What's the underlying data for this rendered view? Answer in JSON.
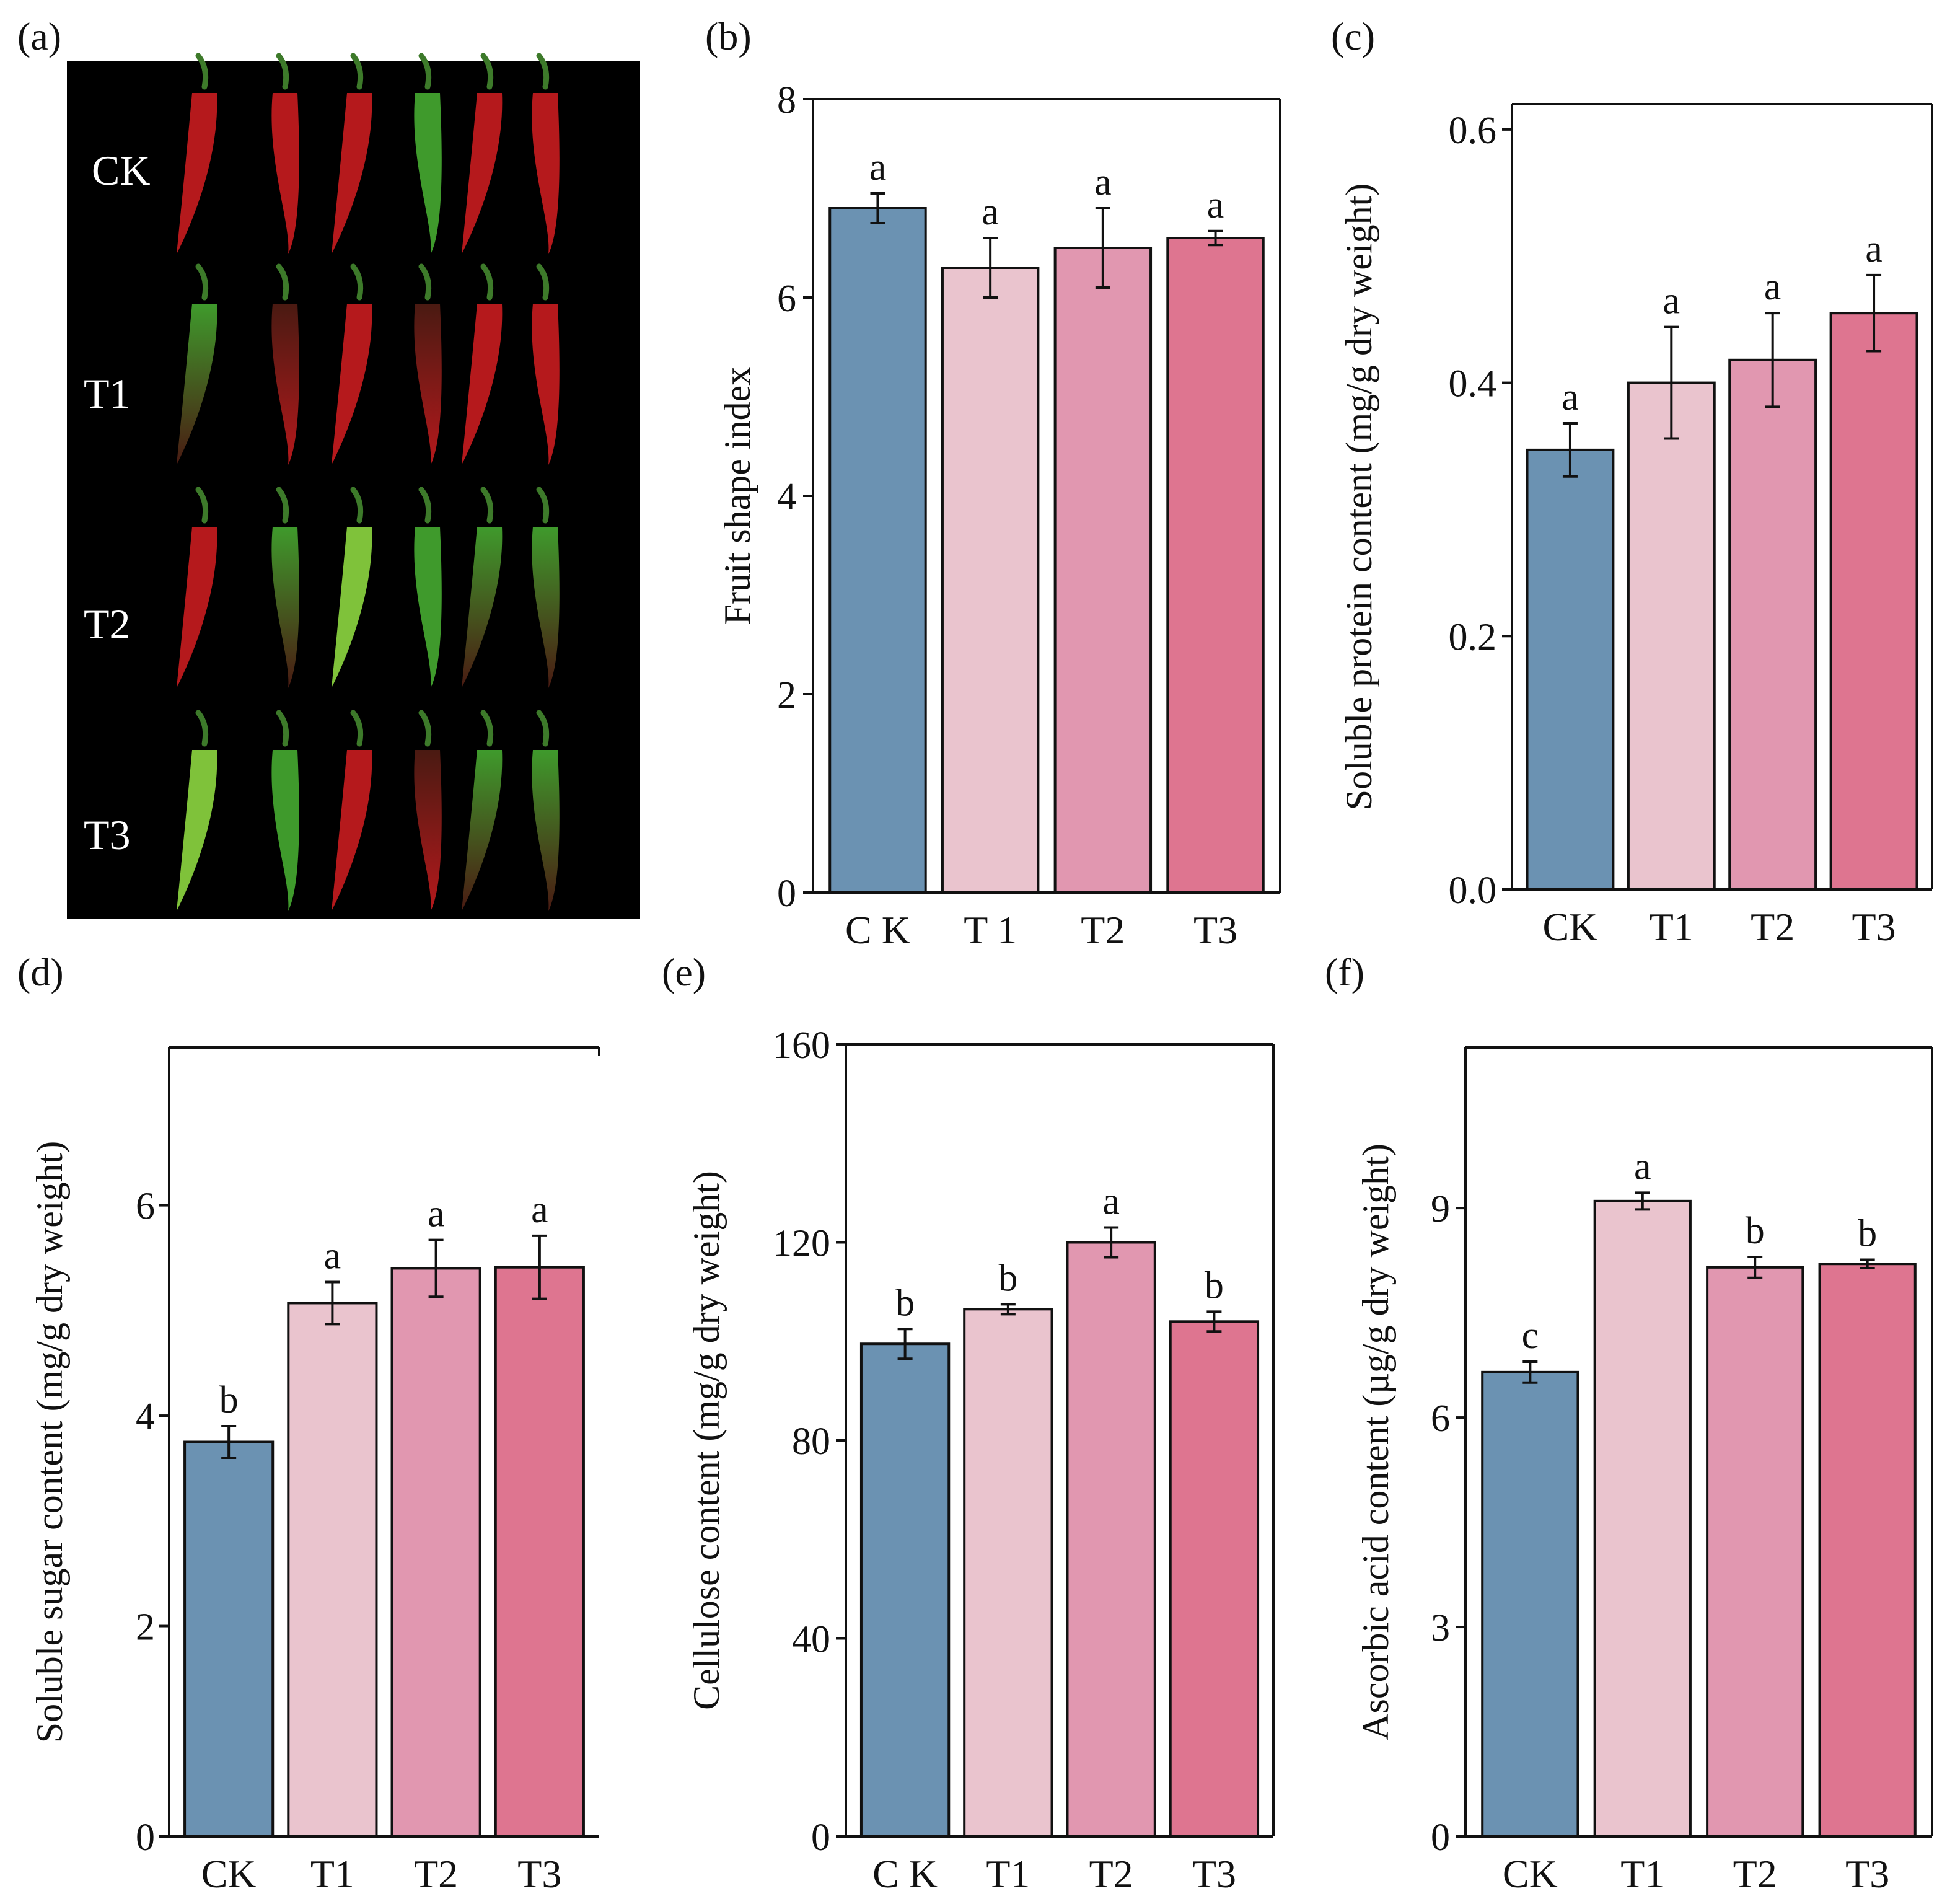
{
  "colors": {
    "CK": "#6b92b2",
    "T1": "#eac4ce",
    "T2": "#e197b0",
    "T3": "#de7590",
    "photo_bg": "#000000",
    "pepper_red": "#b5191c",
    "pepper_dark": "#4a1a12",
    "pepper_green": "#3f9a2c",
    "pepper_light_green": "#7fc23a",
    "stem": "#3d7a2a"
  },
  "panel_a": {
    "label": "(a)",
    "row_labels": [
      "CK",
      "T1",
      "T2",
      "T3"
    ],
    "peppers": [
      [
        "red",
        "red",
        "red",
        "green-red",
        "red",
        "red"
      ],
      [
        "dark-green",
        "dark-red",
        "red",
        "dark-red",
        "red",
        "red"
      ],
      [
        "red",
        "dark-green",
        "light-green",
        "green",
        "green-dark",
        "green-dark"
      ],
      [
        "light-green",
        "green",
        "red",
        "dark-red",
        "dark-green",
        "dark-green"
      ]
    ]
  },
  "chart_data": [
    {
      "id": "b",
      "label": "(b)",
      "type": "bar",
      "categories": [
        "C K",
        "T 1",
        "T2",
        "T3"
      ],
      "values": [
        6.9,
        6.3,
        6.5,
        6.6
      ],
      "errors": [
        0.15,
        0.3,
        0.4,
        0.07
      ],
      "letters": [
        "a",
        "a",
        "a",
        "a"
      ],
      "ylabel": "Fruit shape index",
      "ylim": [
        0,
        8
      ],
      "yticks": [
        "0",
        "2",
        "4",
        "6",
        "8"
      ],
      "ytick_values": [
        0,
        2,
        4,
        6,
        8
      ]
    },
    {
      "id": "c",
      "label": "(c)",
      "type": "bar",
      "categories": [
        "CK",
        "T1",
        "T2",
        "T3"
      ],
      "values": [
        0.347,
        0.4,
        0.418,
        0.455
      ],
      "errors": [
        0.021,
        0.044,
        0.037,
        0.03
      ],
      "letters": [
        "a",
        "a",
        "a",
        "a"
      ],
      "ylabel": "Soluble protein content (mg/g dry weight)",
      "ylim": [
        0,
        0.62
      ],
      "yticks": [
        "0.0",
        "0.2",
        "0.4",
        "0.6"
      ],
      "ytick_values": [
        0,
        0.2,
        0.4,
        0.6
      ]
    },
    {
      "id": "d",
      "label": "(d)",
      "type": "bar",
      "categories": [
        "CK",
        "T1",
        "T2",
        "T3"
      ],
      "values": [
        3.75,
        5.07,
        5.4,
        5.41
      ],
      "errors": [
        0.15,
        0.2,
        0.27,
        0.3
      ],
      "letters": [
        "b",
        "a",
        "a",
        "a"
      ],
      "ylabel": "Soluble sugar content  (mg/g dry weight)",
      "ylim": [
        0,
        7.5
      ],
      "yticks": [
        "0",
        "2",
        "4",
        "6"
      ],
      "ytick_values": [
        0,
        2,
        4,
        6
      ]
    },
    {
      "id": "e",
      "label": "(e)",
      "type": "bar",
      "categories": [
        "C K",
        "T1",
        "T2",
        "T3"
      ],
      "values": [
        99.5,
        106.5,
        120,
        104
      ],
      "errors": [
        3,
        1,
        3,
        2
      ],
      "letters": [
        "b",
        "b",
        "a",
        "b"
      ],
      "ylabel": "Cellulose content  (mg/g dry weight)",
      "ylim": [
        0,
        160
      ],
      "yticks": [
        "0",
        "40",
        "80",
        "120",
        "160"
      ],
      "ytick_values": [
        0,
        40,
        80,
        120,
        160
      ]
    },
    {
      "id": "f",
      "label": "(f)",
      "type": "bar",
      "categories": [
        "CK",
        "T1",
        "T2",
        "T3"
      ],
      "values": [
        6.65,
        9.1,
        8.15,
        8.2
      ],
      "errors": [
        0.15,
        0.12,
        0.15,
        0.06
      ],
      "letters": [
        "c",
        "a",
        "b",
        "b"
      ],
      "ylabel": "Ascorbic acid content (µg/g dry weight)",
      "ylim": [
        0,
        11.3
      ],
      "yticks": [
        "0",
        "3",
        "6",
        "9"
      ],
      "ytick_values": [
        0,
        3,
        6,
        9
      ]
    }
  ]
}
